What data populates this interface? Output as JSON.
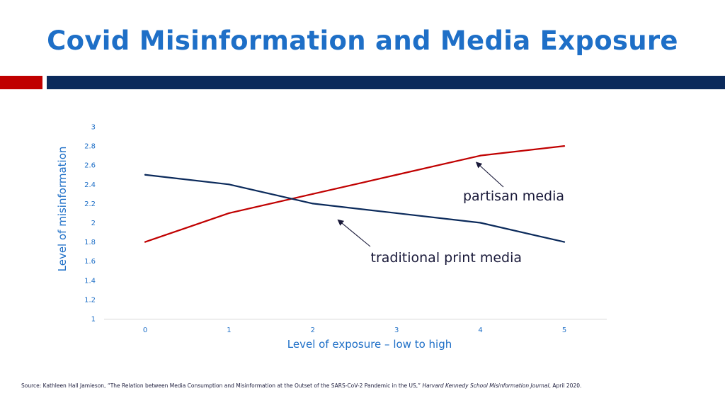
{
  "slide": {
    "title": "Covid Misinformation and Media Exposure",
    "accent_colors": {
      "red": "#c00000",
      "navy": "#0b2a5b",
      "title_blue": "#1e6fc7"
    }
  },
  "chart_data": {
    "type": "line",
    "x": [
      0,
      1,
      2,
      3,
      4,
      5
    ],
    "xlabel": "Level of exposure – low to high",
    "ylabel": "Level of misinformation",
    "ylim": [
      1,
      3
    ],
    "yticks": [
      "1",
      "1.2",
      "1.4",
      "1.6",
      "1.8",
      "2",
      "2.2",
      "2.4",
      "2.6",
      "2.8",
      "3"
    ],
    "xticks": [
      "0",
      "1",
      "2",
      "3",
      "4",
      "5"
    ],
    "grid": false,
    "legend": "none",
    "series": [
      {
        "values": [
          1.8,
          2.1,
          2.3,
          2.5,
          2.7,
          2.8
        ],
        "color": "#c00000"
      },
      {
        "values": [
          2.5,
          2.4,
          2.2,
          2.1,
          2.0,
          1.8
        ],
        "color": "#0b2a5b"
      }
    ],
    "annotations": [
      {
        "text": "partisan media",
        "series_index": 0,
        "arrow_to_x": 3.95,
        "arrow_to_y": 2.63
      },
      {
        "text": "traditional print media",
        "series_index": 1,
        "arrow_to_x": 2.3,
        "arrow_to_y": 2.03
      }
    ]
  },
  "source": {
    "prefix": "Source: Kathleen Hall Jamieson, “The Relation between Media Consumption and Misinformation at the Outset of the SARS-CoV-2 Pandemic in the US,” ",
    "journal": "Harvard Kennedy School Misinformation Journal",
    "suffix": ", April 2020."
  }
}
